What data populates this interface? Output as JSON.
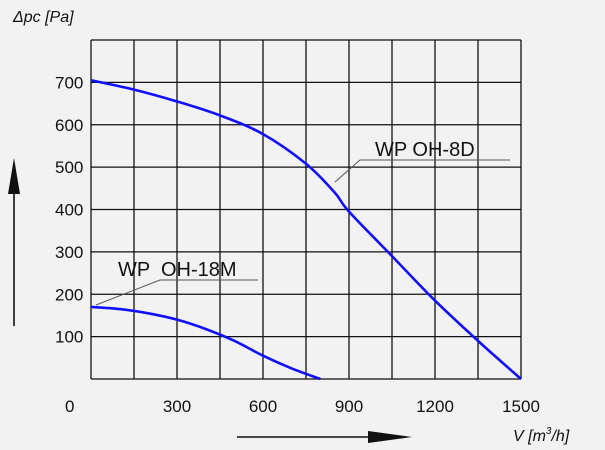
{
  "chart_data": {
    "type": "line",
    "ylabel": "Δpc [Pa]",
    "xlabel_main": "V [m",
    "xlabel_sup": "3",
    "xlabel_tail": "/h]",
    "x_ticks": [
      0,
      300,
      600,
      900,
      1200,
      1500
    ],
    "y_ticks": [
      100,
      200,
      300,
      400,
      500,
      600,
      700
    ],
    "xlim": [
      0,
      1500
    ],
    "ylim": [
      0,
      800
    ],
    "grid": true,
    "series": [
      {
        "name": "WP OH-8D",
        "color": "#1010ff",
        "x": [
          0,
          150,
          300,
          450,
          600,
          750,
          850,
          900,
          1050,
          1200,
          1350,
          1500
        ],
        "y": [
          705,
          683,
          655,
          622,
          578,
          508,
          440,
          395,
          290,
          185,
          90,
          0
        ]
      },
      {
        "name": "WP  OH-18M",
        "color": "#1010ff",
        "x": [
          0,
          100,
          200,
          300,
          400,
          500,
          600,
          700,
          800
        ],
        "y": [
          170,
          165,
          155,
          140,
          118,
          90,
          55,
          25,
          0
        ]
      }
    ]
  }
}
